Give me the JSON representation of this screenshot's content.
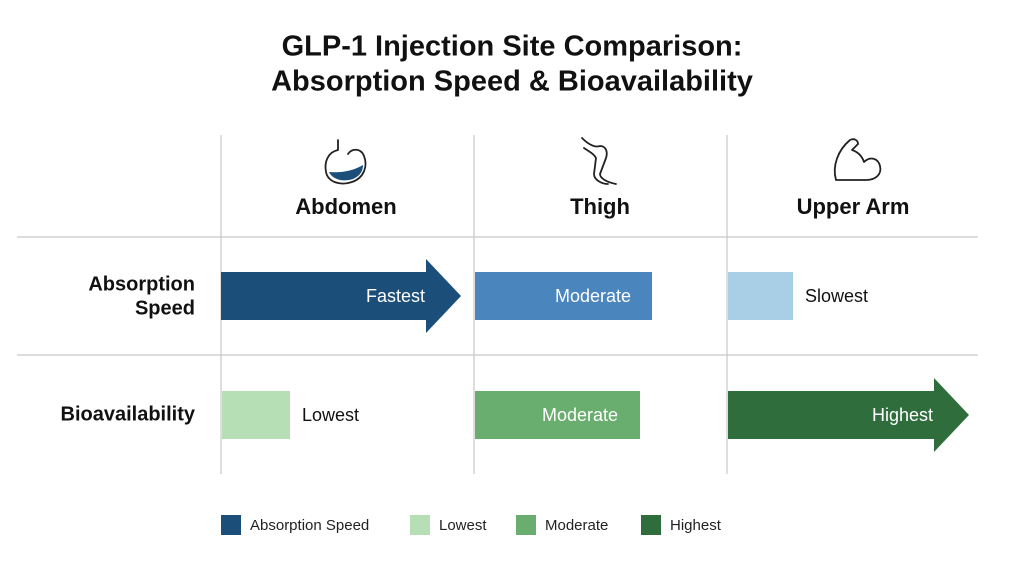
{
  "title": [
    "GLP-1 Injection Site Comparison:",
    "Absorption Speed & Bioavailability"
  ],
  "columns": [
    "Abdomen",
    "Thigh",
    "Upper Arm"
  ],
  "rows": [
    {
      "label": [
        "Absorption",
        "Speed"
      ],
      "cells": [
        "Fastest",
        "Moderate",
        "Slowest"
      ]
    },
    {
      "label": [
        "Bioavailability"
      ],
      "cells": [
        "Lowest",
        "Moderate",
        "Highest"
      ]
    }
  ],
  "legend": [
    "Absorption Speed",
    "Lowest",
    "Moderate",
    "Highest"
  ]
}
